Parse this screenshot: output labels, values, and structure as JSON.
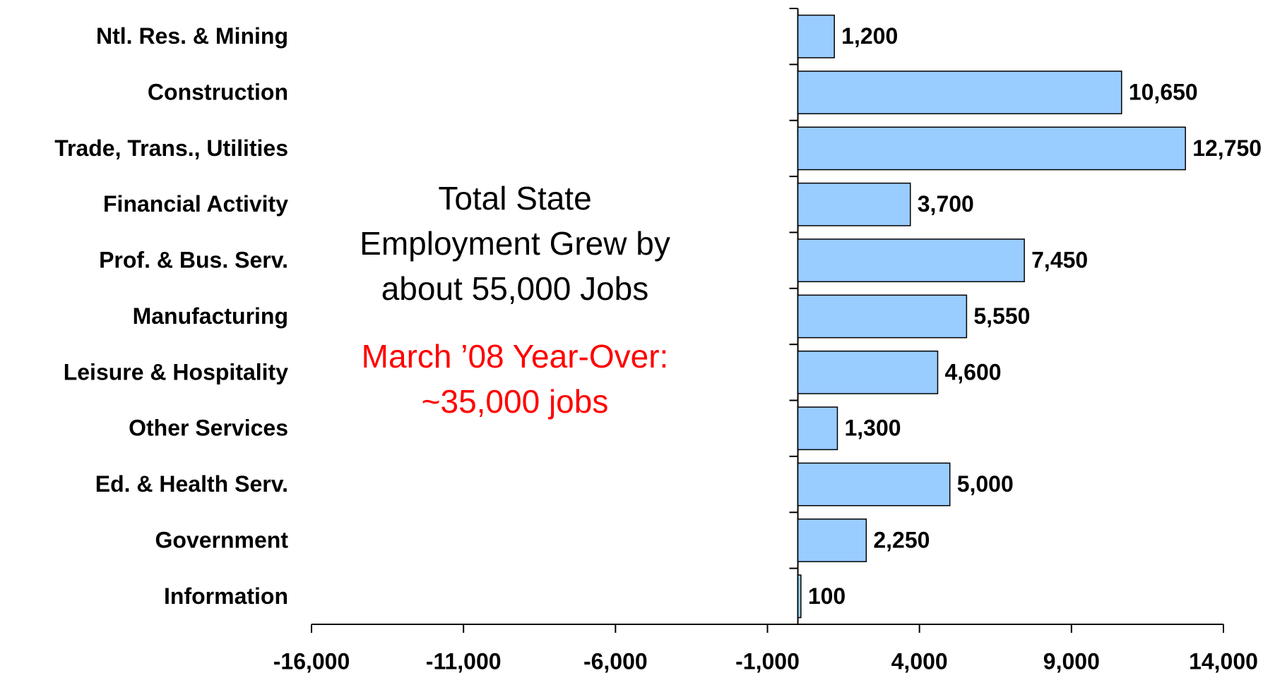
{
  "chart_data": {
    "type": "bar",
    "orientation": "horizontal",
    "categories": [
      "Ntl. Res. & Mining",
      "Construction",
      "Trade, Trans., Utilities",
      "Financial Activity",
      "Prof. & Bus. Serv.",
      "Manufacturing",
      "Leisure & Hospitality",
      "Other Services",
      "Ed. & Health Serv.",
      "Government",
      "Information"
    ],
    "values": [
      1200,
      10650,
      12750,
      3700,
      7450,
      5550,
      4600,
      1300,
      5000,
      2250,
      100
    ],
    "value_labels": [
      "1,200",
      "10,650",
      "12,750",
      "3,700",
      "7,450",
      "5,550",
      "4,600",
      "1,300",
      "5,000",
      "2,250",
      "100"
    ],
    "color": "#99ccff",
    "xlim": [
      -16000,
      14000
    ],
    "xticks": [
      {
        "value": -16000,
        "label": "-16,000"
      },
      {
        "value": -11000,
        "label": "-11,000"
      },
      {
        "value": -6000,
        "label": "-6,000"
      },
      {
        "value": -1000,
        "label": "-1,000"
      },
      {
        "value": 4000,
        "label": "4,000"
      },
      {
        "value": 9000,
        "label": "9,000"
      },
      {
        "value": 14000,
        "label": "14,000"
      }
    ],
    "annotations": [
      "Total State",
      "Employment Grew by",
      "about 55,000 Jobs"
    ],
    "highlight_annotations": [
      "March ’08 Year-Over:",
      "~35,000 jobs"
    ],
    "grid": false
  }
}
